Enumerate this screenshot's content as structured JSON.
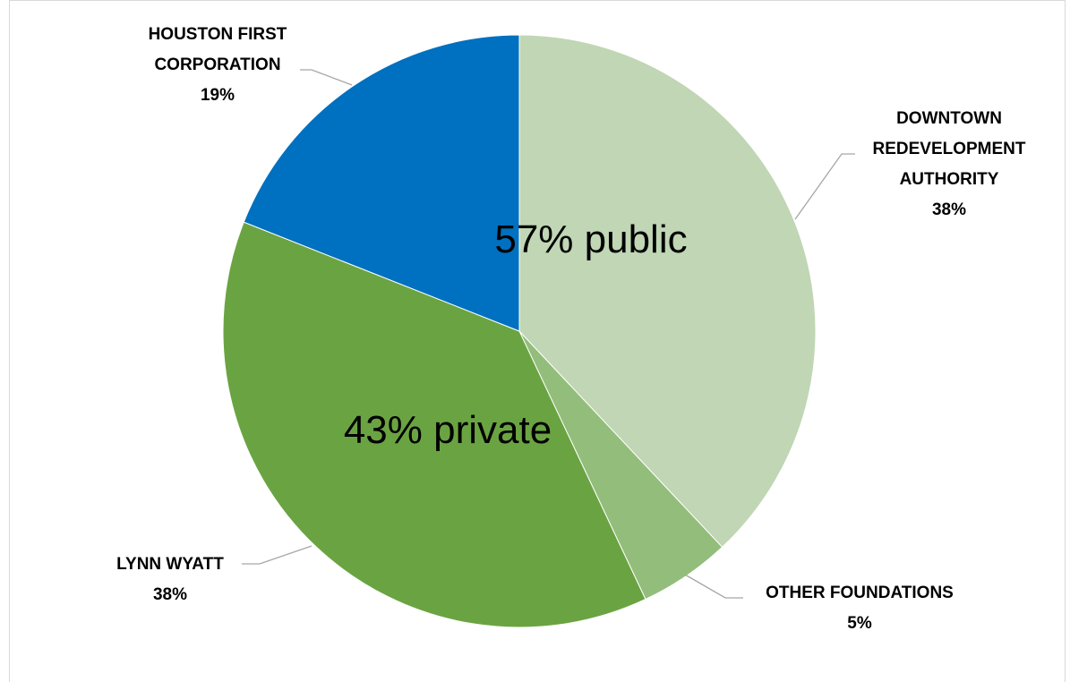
{
  "chart_data": {
    "type": "pie",
    "title": "",
    "slices": [
      {
        "label": [
          "DOWNTOWN",
          "REDEVELOPMENT",
          "AUTHORITY"
        ],
        "pct_label": "38%",
        "value": 38,
        "color": "#c0d6b4"
      },
      {
        "label": [
          "OTHER FOUNDATIONS"
        ],
        "pct_label": "5%",
        "value": 5,
        "color": "#93bd7b"
      },
      {
        "label": [
          "LYNN WYATT"
        ],
        "pct_label": "38%",
        "value": 38,
        "color": "#6aa442"
      },
      {
        "label": [
          "HOUSTON FIRST",
          "CORPORATION"
        ],
        "pct_label": "19%",
        "value": 19,
        "color": "#0070c0"
      }
    ],
    "annotations": [
      {
        "text": "57% public"
      },
      {
        "text": "43% private"
      }
    ],
    "start_angle_deg": 0,
    "direction": "clockwise",
    "leader_line_color": "#a6a6a6"
  }
}
